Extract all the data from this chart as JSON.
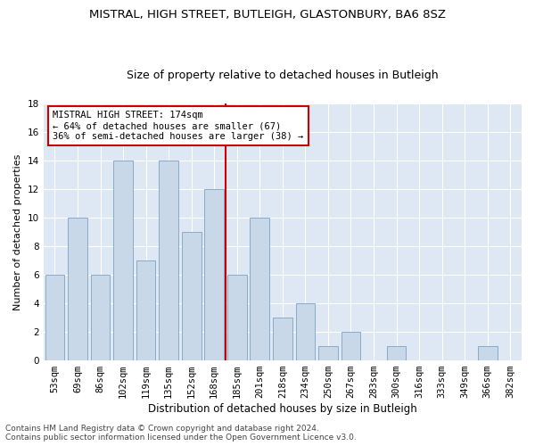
{
  "title": "MISTRAL, HIGH STREET, BUTLEIGH, GLASTONBURY, BA6 8SZ",
  "subtitle": "Size of property relative to detached houses in Butleigh",
  "xlabel": "Distribution of detached houses by size in Butleigh",
  "ylabel": "Number of detached properties",
  "categories": [
    "53sqm",
    "69sqm",
    "86sqm",
    "102sqm",
    "119sqm",
    "135sqm",
    "152sqm",
    "168sqm",
    "185sqm",
    "201sqm",
    "218sqm",
    "234sqm",
    "250sqm",
    "267sqm",
    "283sqm",
    "300sqm",
    "316sqm",
    "333sqm",
    "349sqm",
    "366sqm",
    "382sqm"
  ],
  "values": [
    6,
    10,
    6,
    14,
    7,
    14,
    9,
    12,
    6,
    10,
    3,
    4,
    1,
    2,
    0,
    1,
    0,
    0,
    0,
    1,
    0
  ],
  "bar_color": "#c8d8e8",
  "bar_edge_color": "#8aaac8",
  "highlight_line_color": "#cc0000",
  "annotation_text": "MISTRAL HIGH STREET: 174sqm\n← 64% of detached houses are smaller (67)\n36% of semi-detached houses are larger (38) →",
  "annotation_box_color": "#cc0000",
  "ylim": [
    0,
    18
  ],
  "yticks": [
    0,
    2,
    4,
    6,
    8,
    10,
    12,
    14,
    16,
    18
  ],
  "background_color": "#dde8f4",
  "footer": "Contains HM Land Registry data © Crown copyright and database right 2024.\nContains public sector information licensed under the Open Government Licence v3.0.",
  "title_fontsize": 9.5,
  "subtitle_fontsize": 9,
  "xlabel_fontsize": 8.5,
  "ylabel_fontsize": 8,
  "tick_fontsize": 7.5,
  "annotation_fontsize": 7.5,
  "footer_fontsize": 6.5
}
